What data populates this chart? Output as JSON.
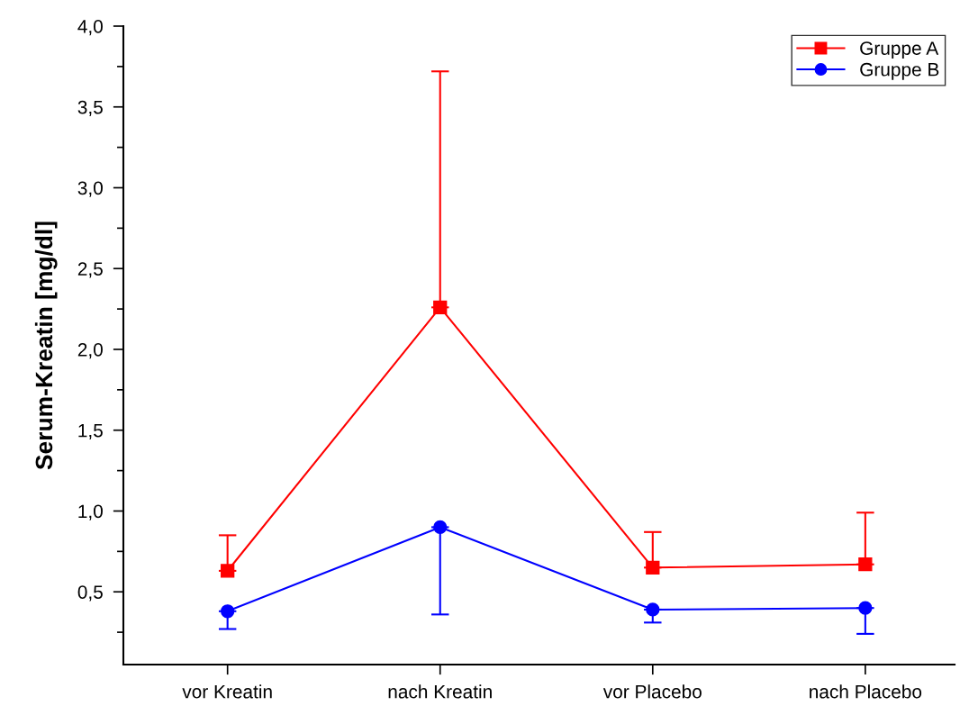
{
  "chart_data": {
    "type": "line",
    "ylabel": "Serum-Kreatin [mg/dl]",
    "categories": [
      "vor Kreatin",
      "nach Kreatin",
      "vor Placebo",
      "nach Placebo"
    ],
    "series": [
      {
        "name": "Gruppe A",
        "color": "#ff0000",
        "marker": "square",
        "values": [
          0.63,
          2.26,
          0.65,
          0.67
        ],
        "errors": [
          [
            0.63,
            0.85
          ],
          [
            2.26,
            3.72
          ],
          [
            0.65,
            0.87
          ],
          [
            0.67,
            0.99
          ]
        ]
      },
      {
        "name": "Gruppe B",
        "color": "#0000ff",
        "marker": "circle",
        "values": [
          0.38,
          0.9,
          0.39,
          0.4
        ],
        "errors": [
          [
            0.27,
            0.38
          ],
          [
            0.36,
            0.9
          ],
          [
            0.31,
            0.39
          ],
          [
            0.24,
            0.4
          ]
        ]
      }
    ],
    "ylim": [
      0.05,
      4.0
    ],
    "yticks": [
      {
        "value": 0.5,
        "label": "0,5"
      },
      {
        "value": 1.0,
        "label": "1,0"
      },
      {
        "value": 1.5,
        "label": "1,5"
      },
      {
        "value": 2.0,
        "label": "2,0"
      },
      {
        "value": 2.5,
        "label": "2,5"
      },
      {
        "value": 3.0,
        "label": "3,0"
      },
      {
        "value": 3.5,
        "label": "3,5"
      },
      {
        "value": 4.0,
        "label": "4,0"
      }
    ],
    "grid": false,
    "legend": "top right",
    "line_style": "solid"
  }
}
